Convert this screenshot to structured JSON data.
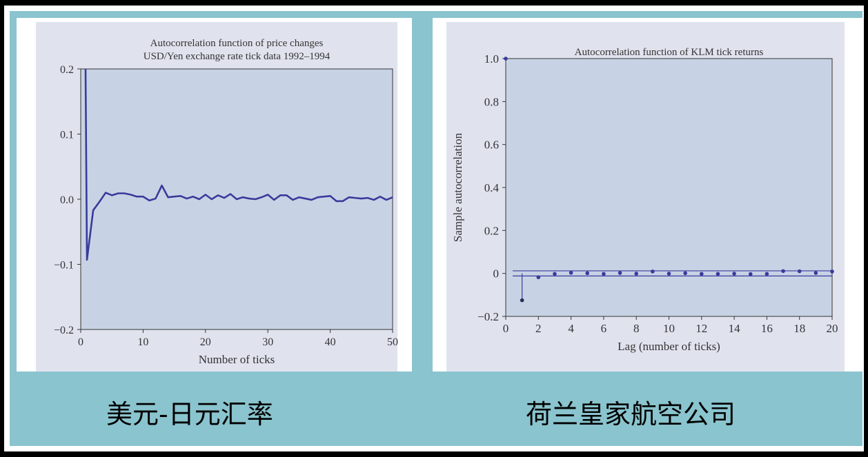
{
  "colors": {
    "background_teal": "#8ac4ce",
    "panel_fill": "#e0e3ee",
    "plot_fill": "#c7d3e4",
    "series_color": "#3a3a9c"
  },
  "captions": {
    "left": "美元-日元汇率",
    "right": "荷兰皇家航空公司"
  },
  "chart_data": [
    {
      "type": "line",
      "title": "Autocorrelation function of price changes",
      "subtitle": "USD/Yen exchange rate tick data 1992–1994",
      "xlabel": "Number of ticks",
      "ylabel": "",
      "xlim": [
        0,
        50
      ],
      "ylim": [
        -0.2,
        0.2
      ],
      "x_ticks": [
        0,
        10,
        20,
        30,
        40,
        50
      ],
      "x_tick_labels": [
        "0",
        "10",
        "20",
        "30",
        "40",
        "50"
      ],
      "y_ticks": [
        0.2,
        0.1,
        0.0,
        -0.1,
        -0.2
      ],
      "y_tick_labels": [
        "0.2",
        "0.1",
        "0.0",
        "−0.1",
        "−0.2"
      ],
      "grid": false,
      "series": [
        {
          "x": [
            1,
            2,
            3,
            4,
            5,
            6,
            7,
            8,
            9,
            10,
            11,
            12,
            13,
            14,
            15,
            16,
            17,
            18,
            19,
            20,
            21,
            22,
            23,
            24,
            25,
            26,
            27,
            28,
            29,
            30,
            31,
            32,
            33,
            34,
            35,
            36,
            37,
            38,
            39,
            40,
            41,
            42,
            43,
            44,
            45,
            46,
            47,
            48,
            49,
            50
          ],
          "values": [
            -0.093,
            -0.017,
            -0.004,
            0.01,
            0.006,
            0.009,
            0.009,
            0.007,
            0.004,
            0.004,
            -0.002,
            0.001,
            0.021,
            0.003,
            0.004,
            0.005,
            0.001,
            0.004,
            0.0,
            0.007,
            0.0,
            0.006,
            0.002,
            0.008,
            0.0,
            0.003,
            0.001,
            0.0,
            0.003,
            0.007,
            -0.001,
            0.006,
            0.006,
            -0.001,
            0.003,
            0.001,
            -0.001,
            0.003,
            0.004,
            0.005,
            -0.003,
            -0.003,
            0.003,
            0.002,
            0.001,
            0.002,
            -0.001,
            0.004,
            -0.001,
            0.003
          ]
        }
      ]
    },
    {
      "type": "scatter",
      "title": "Autocorrelation function of KLM tick returns",
      "xlabel": "Lag (number of ticks)",
      "ylabel": "Sample autocorrelation",
      "xlim": [
        0,
        20
      ],
      "ylim": [
        -0.2,
        1.0
      ],
      "x_ticks": [
        0,
        2,
        4,
        6,
        8,
        10,
        12,
        14,
        16,
        18,
        20
      ],
      "x_tick_labels": [
        "0",
        "2",
        "4",
        "6",
        "8",
        "10",
        "12",
        "14",
        "16",
        "18",
        "20"
      ],
      "y_ticks": [
        1.0,
        0.8,
        0.6,
        0.4,
        0.2,
        0,
        -0.2
      ],
      "y_tick_labels": [
        "1.0",
        "0.8",
        "0.6",
        "0.4",
        "0.2",
        "0",
        "−0.2"
      ],
      "confidence_band": [
        -0.012,
        0.012
      ],
      "grid": false,
      "series": [
        {
          "x": [
            0,
            1,
            2,
            3,
            4,
            5,
            6,
            7,
            8,
            9,
            10,
            11,
            12,
            13,
            14,
            15,
            16,
            17,
            18,
            19,
            20
          ],
          "values": [
            1.0,
            -0.125,
            -0.018,
            -0.002,
            0.003,
            0.001,
            -0.002,
            0.002,
            -0.001,
            0.009,
            -0.001,
            0.001,
            -0.002,
            -0.002,
            -0.001,
            -0.003,
            -0.002,
            0.011,
            0.01,
            0.002,
            0.009
          ]
        }
      ]
    }
  ]
}
